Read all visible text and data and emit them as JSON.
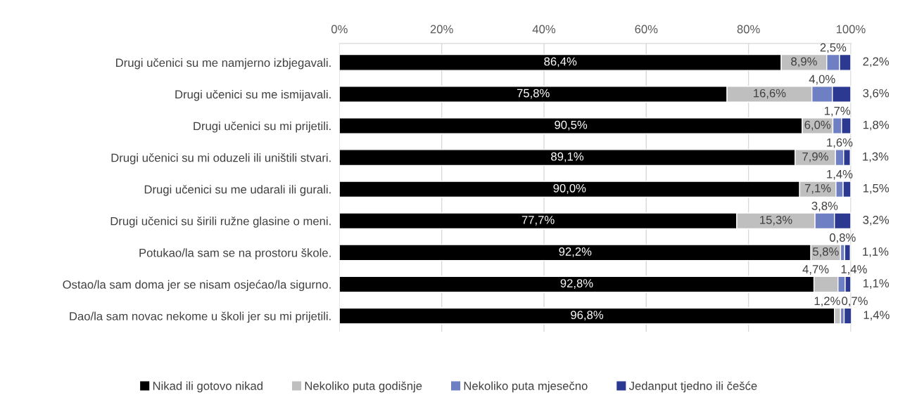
{
  "chart_data": {
    "type": "bar",
    "orientation": "horizontal",
    "stacked": true,
    "categories": [
      "Drugi učenici su me namjerno izbjegavali.",
      "Drugi učenici su me ismijavali.",
      "Drugi učenici su mi prijetili.",
      "Drugi učenici su mi oduzeli ili uništili stvari.",
      "Drugi učenici su me udarali ili gurali.",
      "Drugi učenici su širili ružne glasine o meni.",
      "Potukao/la sam se na prostoru škole.",
      "Ostao/la sam doma jer se nisam osjećao/la sigurno.",
      "Dao/la sam novac nekome u školi jer su mi prijetili."
    ],
    "series": [
      {
        "name": "Nikad ili gotovo nikad",
        "color": "#000000",
        "values": [
          86.4,
          75.8,
          90.5,
          89.1,
          90.0,
          77.7,
          92.2,
          92.8,
          96.8
        ],
        "value_labels": [
          "86,4%",
          "75,8%",
          "90,5%",
          "89,1%",
          "90,0%",
          "77,7%",
          "92,2%",
          "92,8%",
          "96,8%"
        ]
      },
      {
        "name": "Nekoliko puta godišnje",
        "color": "#bfbfbf",
        "values": [
          8.9,
          16.6,
          6.0,
          7.9,
          7.1,
          15.3,
          5.8,
          4.7,
          1.2
        ],
        "value_labels": [
          "8,9%",
          "16,6%",
          "6,0%",
          "7,9%",
          "7,1%",
          "15,3%",
          "5,8%",
          "4,7%",
          "1,2%"
        ]
      },
      {
        "name": "Nekoliko puta mjesečno",
        "color": "#6f7fc4",
        "values": [
          2.5,
          4.0,
          1.7,
          1.6,
          1.4,
          3.8,
          0.8,
          1.4,
          0.7
        ],
        "value_labels": [
          "2,5%",
          "4,0%",
          "1,7%",
          "1,6%",
          "1,4%",
          "3,8%",
          "0,8%",
          "1,4%",
          "0,7%"
        ]
      },
      {
        "name": "Jedanput tjedno ili češće",
        "color": "#2b3990",
        "values": [
          2.2,
          3.6,
          1.8,
          1.3,
          1.5,
          3.2,
          1.1,
          1.1,
          1.4
        ],
        "value_labels": [
          "2,2%",
          "3,6%",
          "1,8%",
          "1,3%",
          "1,5%",
          "3,2%",
          "1,1%",
          "1,1%",
          "1,4%"
        ]
      }
    ],
    "xlim": [
      0,
      100.1
    ],
    "xticks": [
      {
        "value": 0,
        "label": "0%"
      },
      {
        "value": 20,
        "label": "20%"
      },
      {
        "value": 40,
        "label": "40%"
      },
      {
        "value": 60,
        "label": "60%"
      },
      {
        "value": 80,
        "label": "80%"
      },
      {
        "value": 100,
        "label": "100%"
      }
    ],
    "grid": "x",
    "legend": "bottom"
  }
}
